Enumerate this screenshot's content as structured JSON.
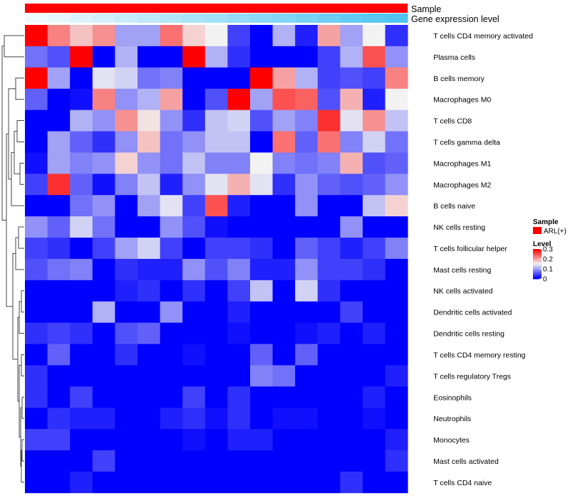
{
  "chart_data": {
    "type": "heatmap",
    "title": "",
    "annotations": [
      {
        "name": "Sample",
        "style": "solid",
        "color": "#ff0000"
      },
      {
        "name": "Gene expression level",
        "style": "gradient",
        "color_low": "#f0fbff",
        "color_high": "#4fc4f0"
      }
    ],
    "rows": [
      "T cells CD4 memory activated",
      "Plasma cells",
      "B cells memory",
      "Macrophages M0",
      "T cells CD8",
      "T cells gamma delta",
      "Macrophages M1",
      "Macrophages M2",
      "B cells naive",
      "NK cells resting",
      "T cells follicular helper",
      "Mast cells resting",
      "NK cells activated",
      "Dendritic cells activated",
      "Dendritic cells resting",
      "T cells CD4 memory resting",
      "T cells regulatory  Tregs",
      "Eosinophils",
      "Neutrophils",
      "Monocytes",
      "Mast cells activated",
      "T cells CD4 naive"
    ],
    "n_columns": 17,
    "color_scale": {
      "min": 0,
      "mid": 0.15,
      "max": 0.3,
      "low": "#0000ff",
      "mid_color": "#f2f2f2",
      "high": "#ff0000"
    },
    "values": [
      [
        0.3,
        0.22,
        0.18,
        0.21,
        0.1,
        0.1,
        0.23,
        0.17,
        0.15,
        0.04,
        0.0,
        0.11,
        0.02,
        0.2,
        0.1,
        0.15,
        0.03
      ],
      [
        0.07,
        0.05,
        0.3,
        0.0,
        0.11,
        0.0,
        0.0,
        0.3,
        0.11,
        0.03,
        0.0,
        0.0,
        0.0,
        0.04,
        0.11,
        0.25,
        0.09
      ],
      [
        0.3,
        0.1,
        0.0,
        0.14,
        0.13,
        0.07,
        0.08,
        0.0,
        0.0,
        0.0,
        0.3,
        0.2,
        0.11,
        0.04,
        0.05,
        0.04,
        0.22
      ],
      [
        0.06,
        0.0,
        0.01,
        0.22,
        0.09,
        0.11,
        0.2,
        0.0,
        0.05,
        0.3,
        0.1,
        0.25,
        0.24,
        0.05,
        0.19,
        0.02,
        0.15
      ],
      [
        0.0,
        0.0,
        0.11,
        0.09,
        0.21,
        0.16,
        0.09,
        0.03,
        0.12,
        0.13,
        0.05,
        0.1,
        0.08,
        0.27,
        0.14,
        0.21,
        0.12
      ],
      [
        0.0,
        0.1,
        0.06,
        0.03,
        0.09,
        0.18,
        0.07,
        0.09,
        0.12,
        0.12,
        0.0,
        0.23,
        0.06,
        0.23,
        0.08,
        0.13,
        0.07
      ],
      [
        0.01,
        0.1,
        0.08,
        0.09,
        0.17,
        0.09,
        0.07,
        0.12,
        0.08,
        0.08,
        0.15,
        0.08,
        0.07,
        0.08,
        0.19,
        0.05,
        0.06
      ],
      [
        0.04,
        0.27,
        0.06,
        0.01,
        0.08,
        0.12,
        0.02,
        0.09,
        0.14,
        0.19,
        0.14,
        0.03,
        0.09,
        0.06,
        0.05,
        0.06,
        0.09
      ],
      [
        0.0,
        0.0,
        0.07,
        0.09,
        0.0,
        0.1,
        0.14,
        0.04,
        0.25,
        0.02,
        0.0,
        0.0,
        0.09,
        0.0,
        0.0,
        0.12,
        0.17
      ],
      [
        0.09,
        0.06,
        0.13,
        0.07,
        0.0,
        0.0,
        0.09,
        0.05,
        0.01,
        0.0,
        0.0,
        0.0,
        0.0,
        0.0,
        0.09,
        0.0,
        0.0
      ],
      [
        0.04,
        0.03,
        0.0,
        0.04,
        0.1,
        0.13,
        0.04,
        0.0,
        0.04,
        0.04,
        0.03,
        0.0,
        0.06,
        0.04,
        0.02,
        0.04,
        0.08
      ],
      [
        0.05,
        0.07,
        0.08,
        0.0,
        0.03,
        0.02,
        0.02,
        0.09,
        0.05,
        0.08,
        0.02,
        0.02,
        0.09,
        0.04,
        0.04,
        0.03,
        0.0
      ],
      [
        0.0,
        0.0,
        0.0,
        0.0,
        0.02,
        0.03,
        0.0,
        0.03,
        0.0,
        0.04,
        0.12,
        0.0,
        0.13,
        0.03,
        0.0,
        0.0,
        0.0
      ],
      [
        0.0,
        0.0,
        0.0,
        0.11,
        0.0,
        0.0,
        0.09,
        0.0,
        0.0,
        0.02,
        0.0,
        0.0,
        0.0,
        0.0,
        0.04,
        0.0,
        0.0
      ],
      [
        0.03,
        0.04,
        0.03,
        0.0,
        0.05,
        0.06,
        0.0,
        0.0,
        0.0,
        0.01,
        0.0,
        0.0,
        0.01,
        0.02,
        0.0,
        0.02,
        0.0
      ],
      [
        0.0,
        0.06,
        0.0,
        0.0,
        0.03,
        0.0,
        0.0,
        0.01,
        0.0,
        0.0,
        0.06,
        0.0,
        0.06,
        0.0,
        0.0,
        0.0,
        0.0
      ],
      [
        0.03,
        0.0,
        0.0,
        0.0,
        0.0,
        0.0,
        0.0,
        0.0,
        0.0,
        0.0,
        0.08,
        0.07,
        0.0,
        0.0,
        0.0,
        0.0,
        0.02
      ],
      [
        0.03,
        0.0,
        0.04,
        0.0,
        0.0,
        0.0,
        0.0,
        0.04,
        0.0,
        0.03,
        0.0,
        0.0,
        0.0,
        0.0,
        0.0,
        0.02,
        0.0
      ],
      [
        0.0,
        0.03,
        0.02,
        0.02,
        0.0,
        0.0,
        0.02,
        0.03,
        0.01,
        0.03,
        0.0,
        0.01,
        0.01,
        0.0,
        0.0,
        0.01,
        0.0
      ],
      [
        0.04,
        0.04,
        0.0,
        0.0,
        0.0,
        0.0,
        0.0,
        0.01,
        0.0,
        0.02,
        0.02,
        0.0,
        0.0,
        0.0,
        0.0,
        0.0,
        0.02
      ],
      [
        0.0,
        0.0,
        0.0,
        0.04,
        0.0,
        0.0,
        0.0,
        0.0,
        0.0,
        0.0,
        0.0,
        0.0,
        0.0,
        0.0,
        0.0,
        0.0,
        0.03
      ],
      [
        0.0,
        0.0,
        0.02,
        0.0,
        0.0,
        0.0,
        0.0,
        0.0,
        0.0,
        0.0,
        0.0,
        0.0,
        0.0,
        0.0,
        0.03,
        0.0,
        0.0
      ]
    ],
    "legend": {
      "sample": {
        "title": "Sample",
        "entries": [
          {
            "label": "ARL(+)",
            "color": "#ff0000"
          }
        ]
      },
      "level": {
        "title": "Level",
        "ticks": [
          {
            "label": "0.3",
            "value": 0.3
          },
          {
            "label": "0.2",
            "value": 0.2
          },
          {
            "label": "0.1",
            "value": 0.1
          },
          {
            "label": "0",
            "value": 0
          }
        ]
      }
    }
  }
}
